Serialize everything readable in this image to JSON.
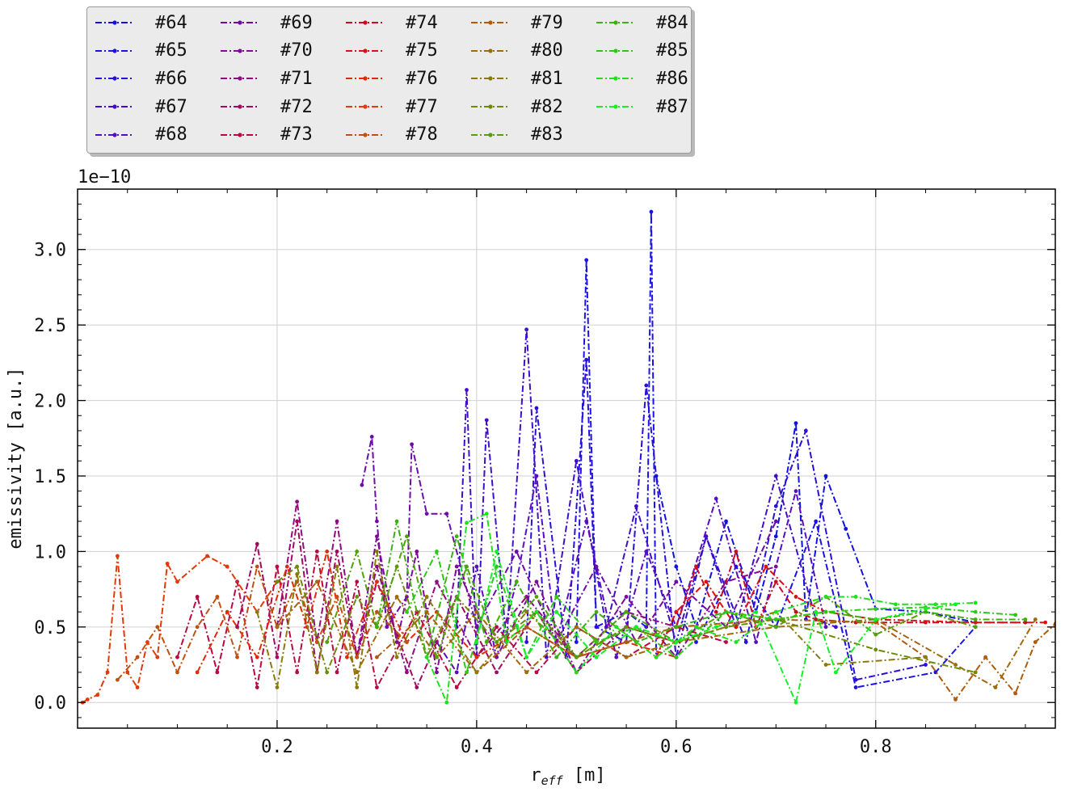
{
  "chart_data": {
    "type": "line",
    "xlabel_main": "r",
    "xlabel_sub": "eff",
    "xlabel_unit": "[m]",
    "ylabel": "emissivity [a.u.]",
    "offset_label": "1e−10",
    "xlim": [
      0.0,
      0.98
    ],
    "ylim": [
      -0.17,
      3.4
    ],
    "xticks": [
      0.2,
      0.4,
      0.6,
      0.8
    ],
    "xtick_labels": [
      "0.2",
      "0.4",
      "0.6",
      "0.8"
    ],
    "yticks": [
      0.0,
      0.5,
      1.0,
      1.5,
      2.0,
      2.5,
      3.0
    ],
    "ytick_labels": [
      "0.0",
      "0.5",
      "1.0",
      "1.5",
      "2.0",
      "2.5",
      "3.0"
    ],
    "grid": true,
    "legend_position": "above-left",
    "line_style": "dash-dot with small markers",
    "series": [
      {
        "name": "#64",
        "color": "#1010e0",
        "x": [
          0.58,
          0.6,
          0.62,
          0.65,
          0.68,
          0.7,
          0.72,
          0.73,
          0.75,
          0.77,
          0.8,
          0.85,
          0.9
        ],
        "y": [
          1.5,
          0.9,
          0.5,
          1.2,
          0.6,
          1.1,
          1.85,
          0.55,
          1.5,
          1.15,
          0.62,
          0.6,
          0.53
        ]
      },
      {
        "name": "#65",
        "color": "#1a12e6",
        "x": [
          0.5,
          0.51,
          0.52,
          0.55,
          0.57,
          0.575,
          0.58,
          0.6,
          0.62,
          0.66,
          0.7,
          0.74,
          0.78,
          0.86,
          0.9
        ],
        "y": [
          0.4,
          2.93,
          0.5,
          0.6,
          0.5,
          3.25,
          0.3,
          0.6,
          0.4,
          0.9,
          0.5,
          1.2,
          0.1,
          0.2,
          0.5
        ]
      },
      {
        "name": "#66",
        "color": "#2a0fd8",
        "x": [
          0.45,
          0.46,
          0.49,
          0.51,
          0.52,
          0.55,
          0.57,
          0.6,
          0.63,
          0.67,
          0.7,
          0.73,
          0.78,
          0.85
        ],
        "y": [
          0.4,
          1.95,
          0.3,
          2.27,
          0.5,
          0.4,
          2.1,
          0.3,
          1.1,
          0.4,
          1.3,
          1.8,
          0.15,
          0.25
        ]
      },
      {
        "name": "#67",
        "color": "#400ec8",
        "x": [
          0.38,
          0.39,
          0.4,
          0.41,
          0.43,
          0.45,
          0.47,
          0.5,
          0.53,
          0.56,
          0.6,
          0.63,
          0.66,
          0.7,
          0.74,
          0.76
        ],
        "y": [
          0.5,
          2.07,
          0.3,
          1.87,
          0.4,
          2.47,
          0.3,
          1.6,
          0.5,
          1.3,
          0.4,
          1.1,
          0.5,
          1.5,
          0.55,
          0.5
        ]
      },
      {
        "name": "#68",
        "color": "#5a0cc0",
        "x": [
          0.36,
          0.38,
          0.4,
          0.42,
          0.44,
          0.46,
          0.48,
          0.51,
          0.54,
          0.57,
          0.6,
          0.64,
          0.68,
          0.72,
          0.75
        ],
        "y": [
          0.4,
          0.2,
          0.9,
          0.3,
          0.8,
          1.5,
          0.4,
          1.2,
          0.3,
          1.0,
          0.5,
          1.35,
          0.4,
          1.4,
          0.5
        ]
      },
      {
        "name": "#69",
        "color": "#6e0aa8",
        "x": [
          0.285,
          0.295,
          0.3,
          0.31,
          0.33,
          0.335,
          0.35,
          0.37,
          0.4,
          0.44,
          0.48,
          0.52,
          0.56,
          0.6,
          0.65,
          0.7
        ],
        "y": [
          1.44,
          1.76,
          1.2,
          0.5,
          0.7,
          1.71,
          1.25,
          1.25,
          0.5,
          1.0,
          0.4,
          0.9,
          0.4,
          0.8,
          0.5,
          1.2
        ]
      },
      {
        "name": "#70",
        "color": "#800a98",
        "x": [
          0.28,
          0.3,
          0.32,
          0.34,
          0.36,
          0.38,
          0.42,
          0.46,
          0.5,
          0.55,
          0.6,
          0.65,
          0.7
        ],
        "y": [
          0.3,
          1.1,
          0.4,
          1.0,
          0.2,
          0.9,
          0.3,
          0.8,
          0.2,
          0.7,
          0.3,
          0.8,
          0.9
        ]
      },
      {
        "name": "#71",
        "color": "#900a80",
        "x": [
          0.2,
          0.22,
          0.24,
          0.26,
          0.28,
          0.3,
          0.33,
          0.36,
          0.4,
          0.45,
          0.5,
          0.55,
          0.6
        ],
        "y": [
          0.5,
          1.33,
          0.4,
          1.2,
          0.3,
          0.9,
          0.2,
          0.8,
          0.3,
          0.7,
          0.3,
          0.6,
          0.5
        ]
      },
      {
        "name": "#72",
        "color": "#a00a60",
        "x": [
          0.16,
          0.18,
          0.2,
          0.22,
          0.24,
          0.26,
          0.28,
          0.3,
          0.34,
          0.38,
          0.42,
          0.46,
          0.5,
          0.55,
          0.6
        ],
        "y": [
          0.5,
          1.05,
          0.3,
          1.2,
          0.2,
          1.0,
          0.3,
          0.8,
          0.1,
          0.7,
          0.2,
          0.6,
          0.2,
          0.5,
          0.4
        ]
      },
      {
        "name": "#73",
        "color": "#b80a40",
        "x": [
          0.1,
          0.12,
          0.14,
          0.16,
          0.18,
          0.2,
          0.22,
          0.24,
          0.26,
          0.28,
          0.3,
          0.34,
          0.38,
          0.42,
          0.46,
          0.5,
          0.55,
          0.6,
          0.65
        ],
        "y": [
          0.3,
          0.7,
          0.2,
          0.8,
          0.1,
          0.9,
          0.2,
          1.0,
          0.2,
          0.8,
          0.1,
          0.6,
          0.1,
          0.5,
          0.2,
          0.5,
          0.3,
          0.5,
          0.4
        ]
      },
      {
        "name": "#74",
        "color": "#cc0a22",
        "x": [
          0.6,
          0.62,
          0.64,
          0.66,
          0.68,
          0.7,
          0.72,
          0.74,
          0.78,
          0.85,
          0.95
        ],
        "y": [
          0.5,
          0.9,
          0.6,
          1.0,
          0.5,
          0.8,
          0.6,
          0.55,
          0.53,
          0.53,
          0.53
        ]
      },
      {
        "name": "#75",
        "color": "#e01010",
        "x": [
          0.58,
          0.6,
          0.63,
          0.66,
          0.69,
          0.72,
          0.75,
          0.8,
          0.9,
          0.97
        ],
        "y": [
          0.3,
          0.6,
          0.8,
          0.5,
          0.9,
          0.7,
          0.6,
          0.55,
          0.53,
          0.53
        ]
      },
      {
        "name": "#76",
        "color": "#e02a0a",
        "x": [
          0.12,
          0.15,
          0.18,
          0.21,
          0.23,
          0.25,
          0.27,
          0.3,
          0.33,
          0.36,
          0.4,
          0.45,
          0.5,
          0.55,
          0.6
        ],
        "y": [
          0.2,
          0.6,
          0.3,
          0.9,
          0.5,
          1.0,
          0.3,
          0.8,
          0.4,
          0.6,
          0.3,
          0.5,
          0.3,
          0.4,
          0.3
        ]
      },
      {
        "name": "#77",
        "color": "#e03a0a",
        "x": [
          0.005,
          0.01,
          0.02,
          0.03,
          0.04,
          0.05,
          0.06,
          0.07,
          0.08,
          0.09,
          0.1,
          0.13,
          0.15,
          0.18,
          0.2
        ],
        "y": [
          0.0,
          0.02,
          0.05,
          0.2,
          0.97,
          0.2,
          0.1,
          0.4,
          0.3,
          0.92,
          0.8,
          0.97,
          0.9,
          0.6,
          0.8
        ]
      },
      {
        "name": "#78",
        "color": "#c05010",
        "x": [
          0.04,
          0.06,
          0.08,
          0.1,
          0.12,
          0.14,
          0.16,
          0.18,
          0.2,
          0.22,
          0.24,
          0.26,
          0.28,
          0.3,
          0.33
        ],
        "y": [
          0.15,
          0.3,
          0.5,
          0.2,
          0.5,
          0.7,
          0.3,
          0.9,
          0.5,
          0.8,
          0.4,
          0.7,
          0.3,
          0.6,
          0.4
        ]
      },
      {
        "name": "#79",
        "color": "#b05a0a",
        "x": [
          0.3,
          0.35,
          0.4,
          0.45,
          0.5,
          0.55,
          0.6,
          0.7,
          0.8,
          0.85,
          0.88,
          0.91,
          0.94,
          0.96,
          0.98
        ],
        "y": [
          0.3,
          0.6,
          0.2,
          0.5,
          0.3,
          0.4,
          0.5,
          0.55,
          0.53,
          0.3,
          0.02,
          0.3,
          0.06,
          0.4,
          0.52
        ]
      },
      {
        "name": "#80",
        "color": "#a06a0a",
        "x": [
          0.2,
          0.24,
          0.28,
          0.32,
          0.36,
          0.4,
          0.45,
          0.5,
          0.55,
          0.6,
          0.7,
          0.8,
          0.88,
          0.92,
          0.96
        ],
        "y": [
          0.5,
          0.8,
          0.2,
          0.7,
          0.3,
          0.6,
          0.2,
          0.5,
          0.3,
          0.4,
          0.5,
          0.55,
          0.25,
          0.1,
          0.55
        ]
      },
      {
        "name": "#81",
        "color": "#8a7a0a",
        "x": [
          0.18,
          0.2,
          0.22,
          0.24,
          0.26,
          0.28,
          0.3,
          0.32,
          0.35,
          0.4,
          0.45,
          0.5,
          0.55,
          0.6,
          0.7,
          0.75,
          0.85
        ],
        "y": [
          0.6,
          0.1,
          0.85,
          0.2,
          0.9,
          0.1,
          1.0,
          0.3,
          0.7,
          0.2,
          0.6,
          0.3,
          0.5,
          0.4,
          0.6,
          0.25,
          0.3
        ]
      },
      {
        "name": "#82",
        "color": "#6e8a0a",
        "x": [
          0.2,
          0.22,
          0.25,
          0.28,
          0.3,
          0.32,
          0.35,
          0.38,
          0.42,
          0.46,
          0.5,
          0.55,
          0.6,
          0.65,
          0.7,
          0.8,
          0.9
        ],
        "y": [
          0.8,
          0.9,
          0.2,
          0.7,
          0.5,
          0.9,
          0.3,
          0.7,
          0.4,
          0.6,
          0.3,
          0.5,
          0.4,
          0.5,
          0.55,
          0.35,
          0.2
        ]
      },
      {
        "name": "#83",
        "color": "#52a00a",
        "x": [
          0.25,
          0.28,
          0.3,
          0.33,
          0.36,
          0.39,
          0.42,
          0.46,
          0.5,
          0.55,
          0.6,
          0.65,
          0.7,
          0.75,
          0.8,
          0.85,
          0.9
        ],
        "y": [
          0.4,
          1.0,
          0.5,
          1.1,
          0.3,
          0.9,
          0.4,
          0.7,
          0.3,
          0.6,
          0.4,
          0.6,
          0.5,
          0.7,
          0.45,
          0.6,
          0.5
        ]
      },
      {
        "name": "#84",
        "color": "#3cb010",
        "x": [
          0.3,
          0.32,
          0.35,
          0.38,
          0.41,
          0.44,
          0.48,
          0.52,
          0.56,
          0.6,
          0.65,
          0.7,
          0.75,
          0.8,
          0.85,
          0.9,
          0.95
        ],
        "y": [
          0.5,
          1.2,
          0.3,
          1.1,
          0.4,
          0.8,
          0.3,
          0.6,
          0.4,
          0.5,
          0.6,
          0.55,
          0.6,
          0.55,
          0.6,
          0.55,
          0.55
        ]
      },
      {
        "name": "#85",
        "color": "#2ec81a",
        "x": [
          0.33,
          0.36,
          0.39,
          0.42,
          0.45,
          0.48,
          0.52,
          0.56,
          0.6,
          0.65,
          0.7,
          0.75,
          0.8,
          0.85,
          0.9,
          0.94
        ],
        "y": [
          0.6,
          1.0,
          0.2,
          0.9,
          0.3,
          0.7,
          0.4,
          0.5,
          0.3,
          0.6,
          0.55,
          0.6,
          0.62,
          0.63,
          0.6,
          0.58
        ]
      },
      {
        "name": "#86",
        "color": "#1ee01e",
        "x": [
          0.35,
          0.37,
          0.39,
          0.41,
          0.43,
          0.46,
          0.5,
          0.54,
          0.58,
          0.62,
          0.66,
          0.7,
          0.75,
          0.78,
          0.82,
          0.86,
          0.9
        ],
        "y": [
          0.3,
          0.0,
          1.19,
          1.25,
          0.4,
          0.6,
          0.2,
          0.5,
          0.3,
          0.5,
          0.4,
          0.6,
          0.7,
          0.7,
          0.65,
          0.65,
          0.66
        ]
      },
      {
        "name": "#87",
        "color": "#14f028",
        "x": [
          0.4,
          0.42,
          0.45,
          0.48,
          0.52,
          0.56,
          0.6,
          0.64,
          0.68,
          0.72,
          0.74,
          0.76,
          0.8,
          0.85,
          0.88
        ],
        "y": [
          0.4,
          1.0,
          0.3,
          0.6,
          0.3,
          0.5,
          0.4,
          0.5,
          0.6,
          0.0,
          0.6,
          0.2,
          0.55,
          0.62,
          0.65
        ]
      }
    ]
  }
}
